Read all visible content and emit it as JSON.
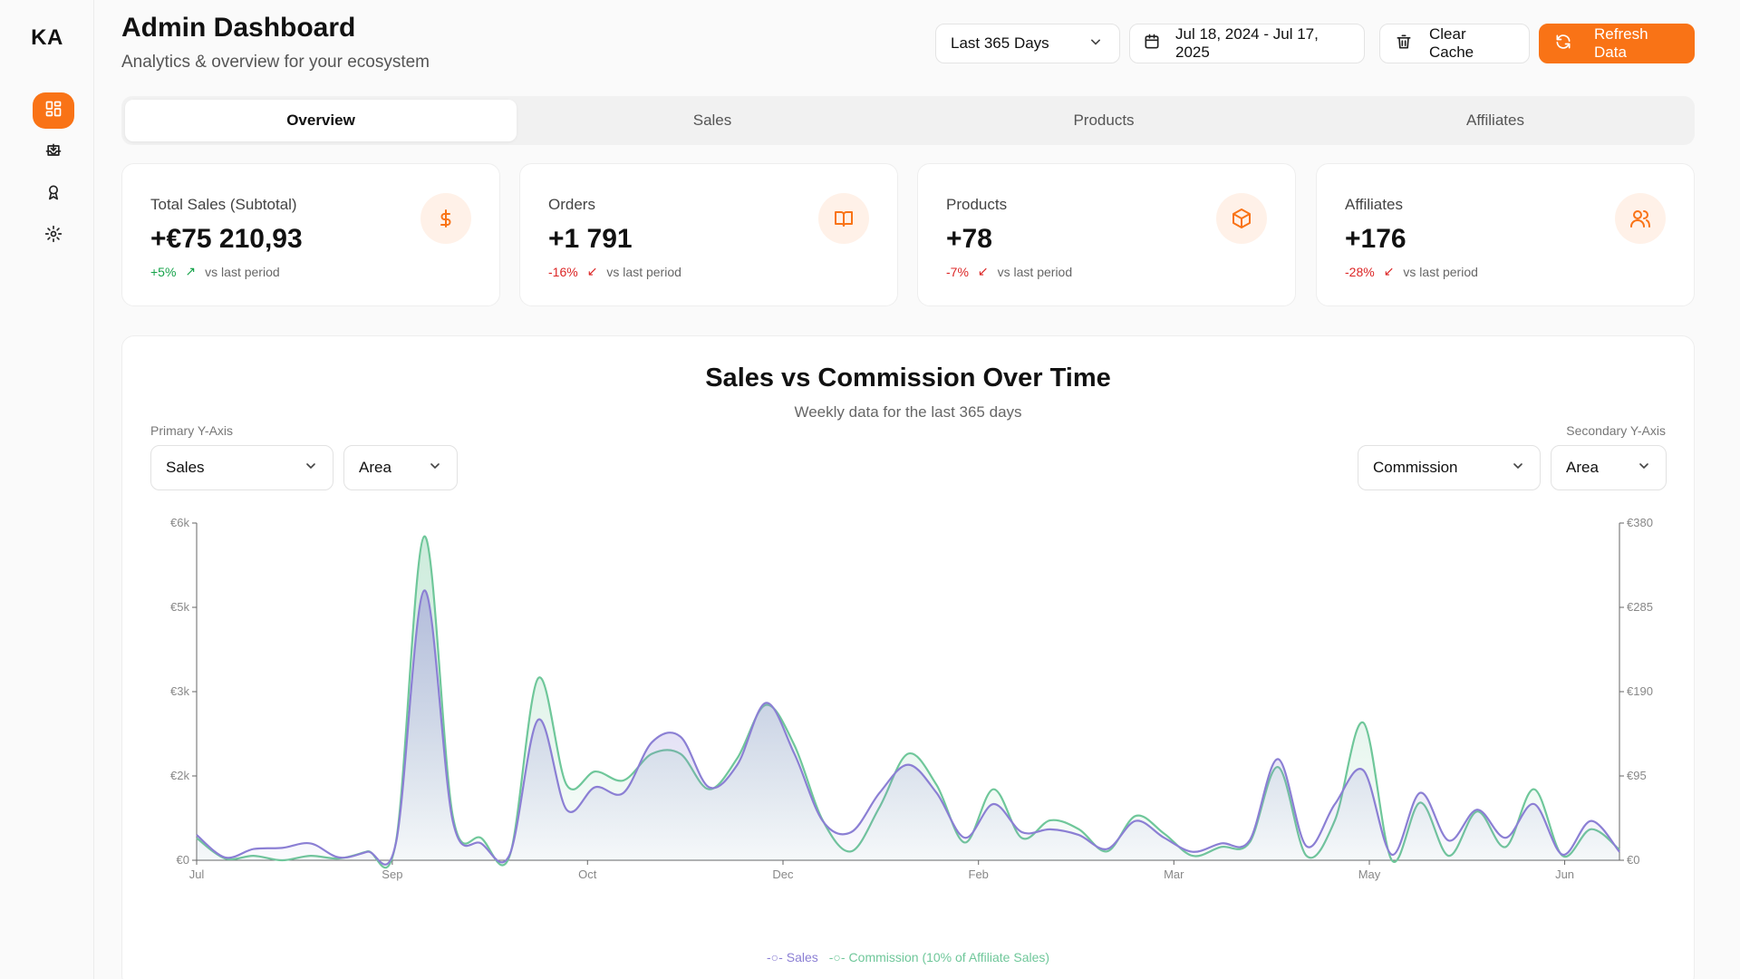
{
  "app": {
    "logo": "KA"
  },
  "sidebar": {
    "items": [
      {
        "icon": "dashboard-icon",
        "active": true
      },
      {
        "icon": "inbox-download-icon",
        "active": false
      },
      {
        "icon": "award-icon",
        "active": false
      },
      {
        "icon": "gear-icon",
        "active": false
      }
    ]
  },
  "header": {
    "title": "Admin Dashboard",
    "subtitle": "Analytics & overview for your ecosystem"
  },
  "controls": {
    "range_select": "Last 365 Days",
    "date_range": "Jul 18, 2024 - Jul 17, 2025",
    "clear_cache": "Clear Cache",
    "refresh": "Refresh Data"
  },
  "tabs": [
    {
      "label": "Overview",
      "active": true
    },
    {
      "label": "Sales",
      "active": false
    },
    {
      "label": "Products",
      "active": false
    },
    {
      "label": "Affiliates",
      "active": false
    }
  ],
  "stats": [
    {
      "label": "Total Sales (Subtotal)",
      "value": "+€75 210,93",
      "delta": "+5%",
      "direction": "up",
      "note": "vs last period",
      "icon": "dollar-icon"
    },
    {
      "label": "Orders",
      "value": "+1 791",
      "delta": "-16%",
      "direction": "down",
      "note": "vs last period",
      "icon": "book-icon"
    },
    {
      "label": "Products",
      "value": "+78",
      "delta": "-7%",
      "direction": "down",
      "note": "vs last period",
      "icon": "box-icon"
    },
    {
      "label": "Affiliates",
      "value": "+176",
      "delta": "-28%",
      "direction": "down",
      "note": "vs last period",
      "icon": "users-icon"
    }
  ],
  "colors": {
    "accent": "#f97316",
    "sales": "#8b7fd4",
    "commission": "#6fc79a",
    "up": "#16a34a",
    "down": "#dc2626"
  },
  "chart_controls": {
    "primary_caption": "Primary Y-Axis",
    "secondary_caption": "Secondary Y-Axis",
    "primary_metric": "Sales",
    "primary_type": "Area",
    "secondary_metric": "Commission",
    "secondary_type": "Area"
  },
  "chart_data": {
    "type": "area",
    "title": "Sales vs Commission Over Time",
    "subtitle": "Weekly data for the last 365 days",
    "x_ticks": [
      "Jul",
      "Sep",
      "Oct",
      "Dec",
      "Feb",
      "Mar",
      "May",
      "Jun"
    ],
    "y_left_ticks": [
      "€0",
      "€2k",
      "€3k",
      "€5k",
      "€6k"
    ],
    "y_right_ticks": [
      "€0",
      "€95",
      "€190",
      "€285",
      "€380"
    ],
    "ylim_left": [
      0,
      6000
    ],
    "ylim_right": [
      0,
      380
    ],
    "series": [
      {
        "name": "Sales",
        "axis": "left",
        "values": [
          450,
          50,
          200,
          220,
          300,
          50,
          150,
          300,
          4800,
          700,
          300,
          100,
          2500,
          900,
          1300,
          1200,
          2100,
          2200,
          1300,
          1700,
          2800,
          1900,
          700,
          500,
          1200,
          1700,
          1200,
          400,
          1000,
          500,
          550,
          450,
          200,
          700,
          400,
          150,
          300,
          350,
          1800,
          250,
          1000,
          1600,
          100,
          1200,
          350,
          900,
          400,
          1000,
          100,
          700,
          150
        ]
      },
      {
        "name": "Commission (10% of Affiliate Sales)",
        "axis": "right",
        "values": [
          25,
          2,
          5,
          0,
          5,
          2,
          10,
          20,
          365,
          50,
          25,
          5,
          205,
          85,
          100,
          90,
          120,
          120,
          80,
          115,
          175,
          130,
          45,
          10,
          60,
          120,
          85,
          20,
          80,
          25,
          45,
          35,
          10,
          50,
          30,
          5,
          15,
          20,
          105,
          5,
          45,
          155,
          0,
          65,
          5,
          55,
          15,
          80,
          5,
          35,
          12
        ]
      }
    ],
    "grid": false,
    "legend": "bottom-center"
  }
}
